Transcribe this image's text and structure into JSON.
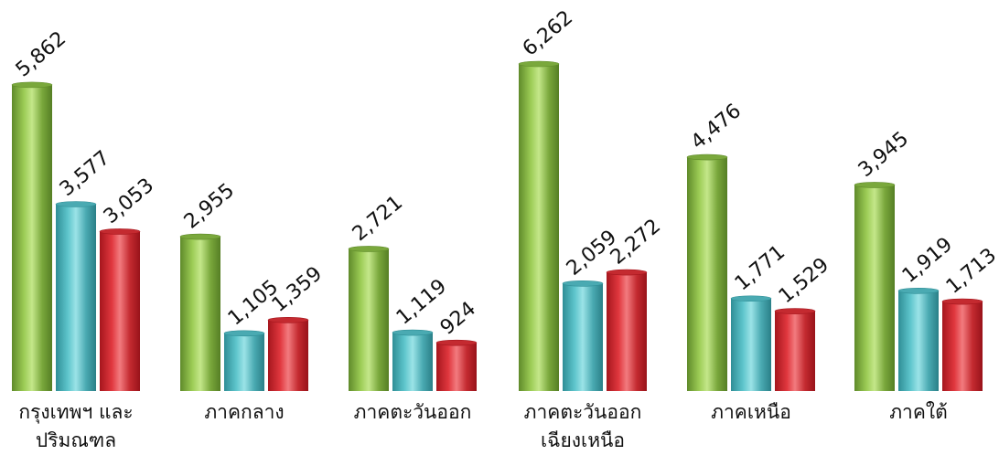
{
  "chart_data": {
    "type": "bar",
    "categories": [
      [
        "กรุงเทพฯ และ",
        "ปริมณฑล"
      ],
      [
        "ภาคกลาง"
      ],
      [
        "ภาคตะวันออก"
      ],
      [
        "ภาคตะวันออก",
        "เฉียงเหนือ"
      ],
      [
        "ภาคเหนือ"
      ],
      [
        "ภาคใต้"
      ]
    ],
    "series": [
      {
        "values": [
          5862,
          2955,
          2721,
          6262,
          4476,
          3945
        ],
        "labels": [
          "5,862",
          "2,955",
          "2,721",
          "6,262",
          "4,476",
          "3,945"
        ],
        "color": "green"
      },
      {
        "values": [
          3577,
          1105,
          1119,
          2059,
          1771,
          1919
        ],
        "labels": [
          "3,577",
          "1,105",
          "1,119",
          "2,059",
          "1,771",
          "1,919"
        ],
        "color": "teal"
      },
      {
        "values": [
          3053,
          1359,
          924,
          2272,
          1529,
          1713
        ],
        "labels": [
          "3,053",
          "1,359",
          "924",
          "2,272",
          "1,529",
          "1,713"
        ],
        "color": "red"
      }
    ],
    "ylim": [
      0,
      6262
    ],
    "grid": false,
    "legend": "none",
    "colors": {
      "green": [
        "#5f8a2a",
        "#9ccc55",
        "#c4e78a",
        "#7aa83c",
        "#557e24"
      ],
      "teal": [
        "#2f8e96",
        "#5ec5cc",
        "#9be3e7",
        "#4aaab2",
        "#2a7f87"
      ],
      "red": [
        "#a5161d",
        "#e0373e",
        "#f27b7f",
        "#c42a30",
        "#98131a"
      ]
    }
  }
}
